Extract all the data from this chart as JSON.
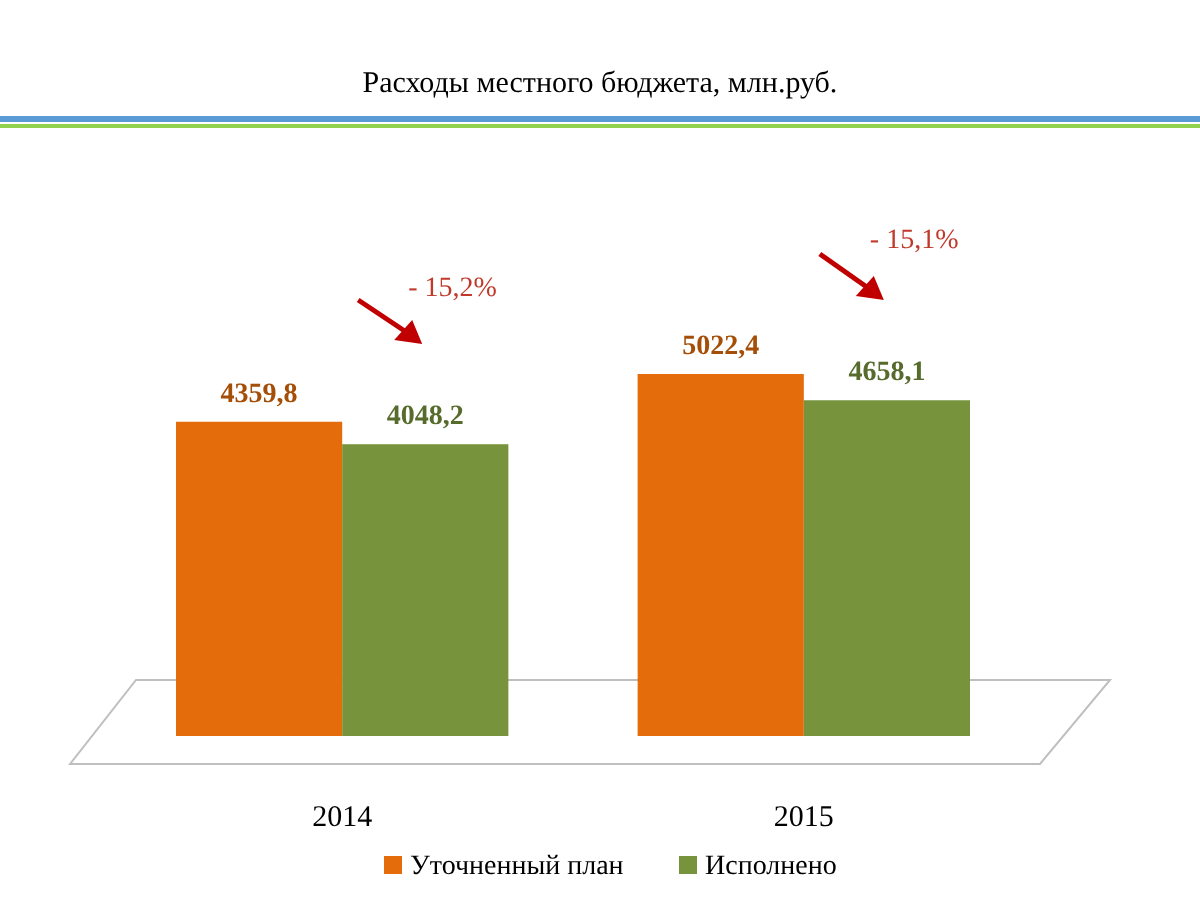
{
  "chart_data": {
    "type": "bar",
    "title": "Расходы местного бюджета, млн.руб.",
    "categories": [
      "2014",
      "2015"
    ],
    "series": [
      {
        "name": "Уточненный план",
        "color": "#e46c0a",
        "values": [
          4359.8,
          5022.4
        ],
        "value_labels": [
          "4359,8",
          "5022,4"
        ]
      },
      {
        "name": "Исполнено",
        "color": "#77933c",
        "values": [
          4048.2,
          4658.1
        ],
        "value_labels": [
          "4048,2",
          "4658,1"
        ]
      }
    ],
    "annotations": [
      "- 15,2%",
      "- 15,1%"
    ],
    "legend": "bottom"
  }
}
